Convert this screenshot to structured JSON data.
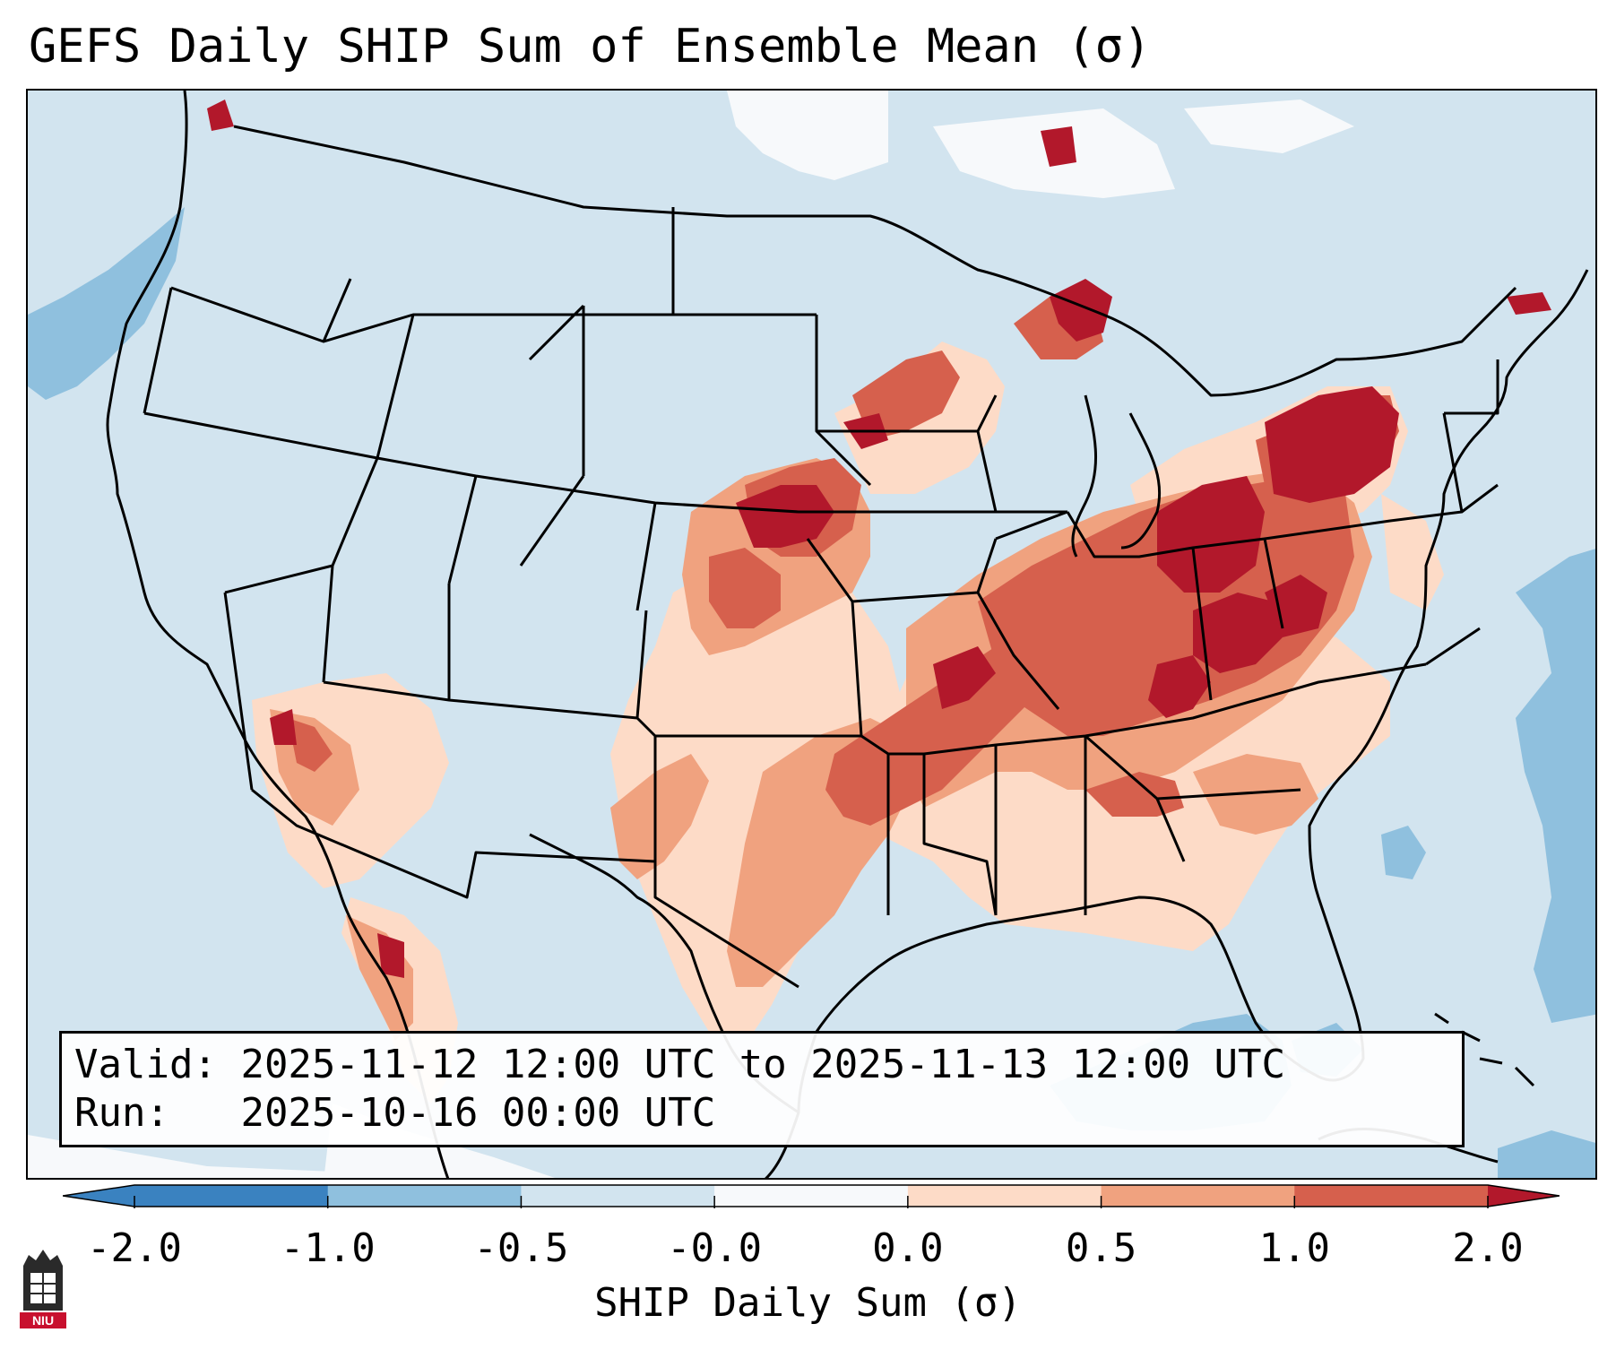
{
  "title": "GEFS Daily SHIP Sum of Ensemble Mean (σ)",
  "valid_label": "Valid:",
  "valid_value": "2025-11-12 12:00 UTC to 2025-11-13 12:00 UTC",
  "run_label": "Run:",
  "run_value": "2025-10-16 00:00 UTC",
  "colorbar": {
    "label": "SHIP Daily Sum (σ)",
    "ticks": [
      "-2.0",
      "-1.0",
      "-0.5",
      "-0.0",
      "0.0",
      "0.5",
      "1.0",
      "2.0"
    ],
    "colors": [
      "#3a82c0",
      "#8fc0de",
      "#d2e4ef",
      "#f7f9fb",
      "#fddbc7",
      "#f0a27f",
      "#d6604d",
      "#b2182b"
    ]
  },
  "map": {
    "background_color": "#d2e4ef",
    "land_boundary_color": "#000000",
    "anomaly_regions": [
      {
        "name": "upper-midwest-to-northeast-band",
        "sigma_class": "1.0 to 2.0"
      },
      {
        "name": "ohio-valley-core",
        "sigma_class": "1.0 to 2.0"
      },
      {
        "name": "southern-plains-band",
        "sigma_class": "0.5 to 1.0"
      },
      {
        "name": "southeast-fringe",
        "sigma_class": "0.0 to 0.5"
      },
      {
        "name": "desert-southwest",
        "sigma_class": "0.0 to 1.0"
      },
      {
        "name": "gulf-of-mexico-negative",
        "sigma_class": "-1.0 to -0.5"
      },
      {
        "name": "pacific-negative",
        "sigma_class": "-1.0 to -0.5"
      },
      {
        "name": "atlantic-negative",
        "sigma_class": "-1.0 to -0.5"
      }
    ]
  },
  "logo": {
    "text": "NIU"
  }
}
